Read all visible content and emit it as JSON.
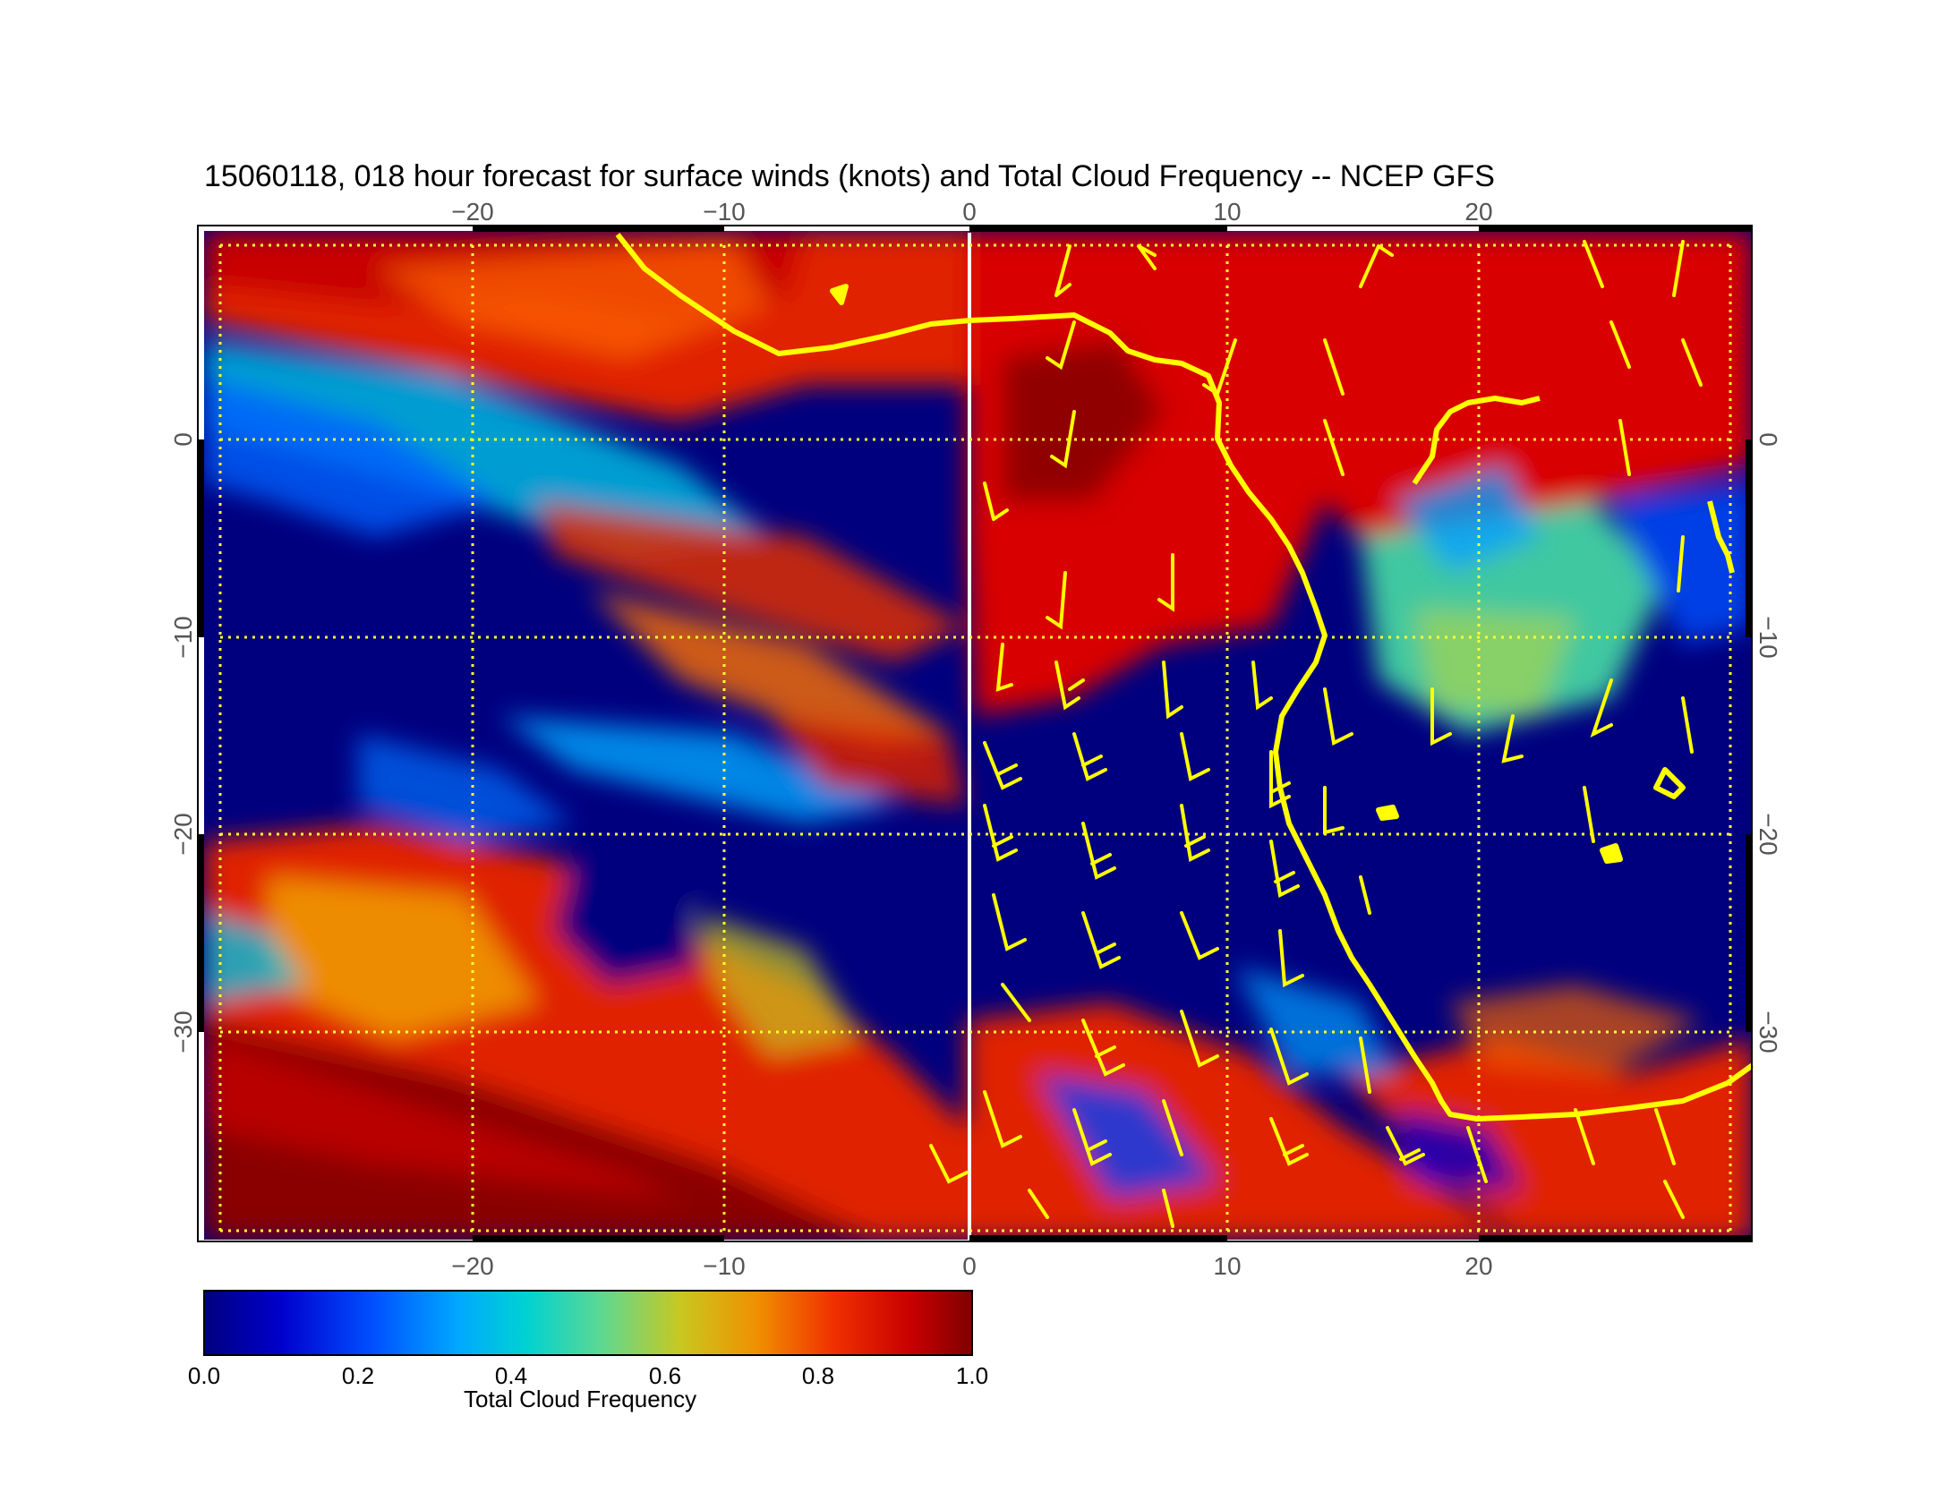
{
  "title": "15060118, 018 hour forecast for surface winds (knots) and Total Cloud Frequency -- NCEP GFS",
  "map": {
    "lon_ticks": [
      "−20",
      "−10",
      "0",
      "10",
      "20"
    ],
    "lat_ticks": [
      "0",
      "−10",
      "−20",
      "−30"
    ],
    "grid_color": "#ffff33",
    "coastline_color": "#ffff00",
    "barb_color": "#ffff00",
    "field": "Total Cloud Frequency"
  },
  "colorbar": {
    "title": "Total Cloud Frequency",
    "tick_labels": [
      "0.0",
      "0.2",
      "0.4",
      "0.6",
      "0.8",
      "1.0"
    ],
    "colors": [
      "#00007f",
      "#0000cc",
      "#0050ff",
      "#00a0ff",
      "#00d4d4",
      "#40e0a0",
      "#90d060",
      "#c8c820",
      "#f0a000",
      "#ff5000",
      "#e00000",
      "#7f0000"
    ]
  }
}
